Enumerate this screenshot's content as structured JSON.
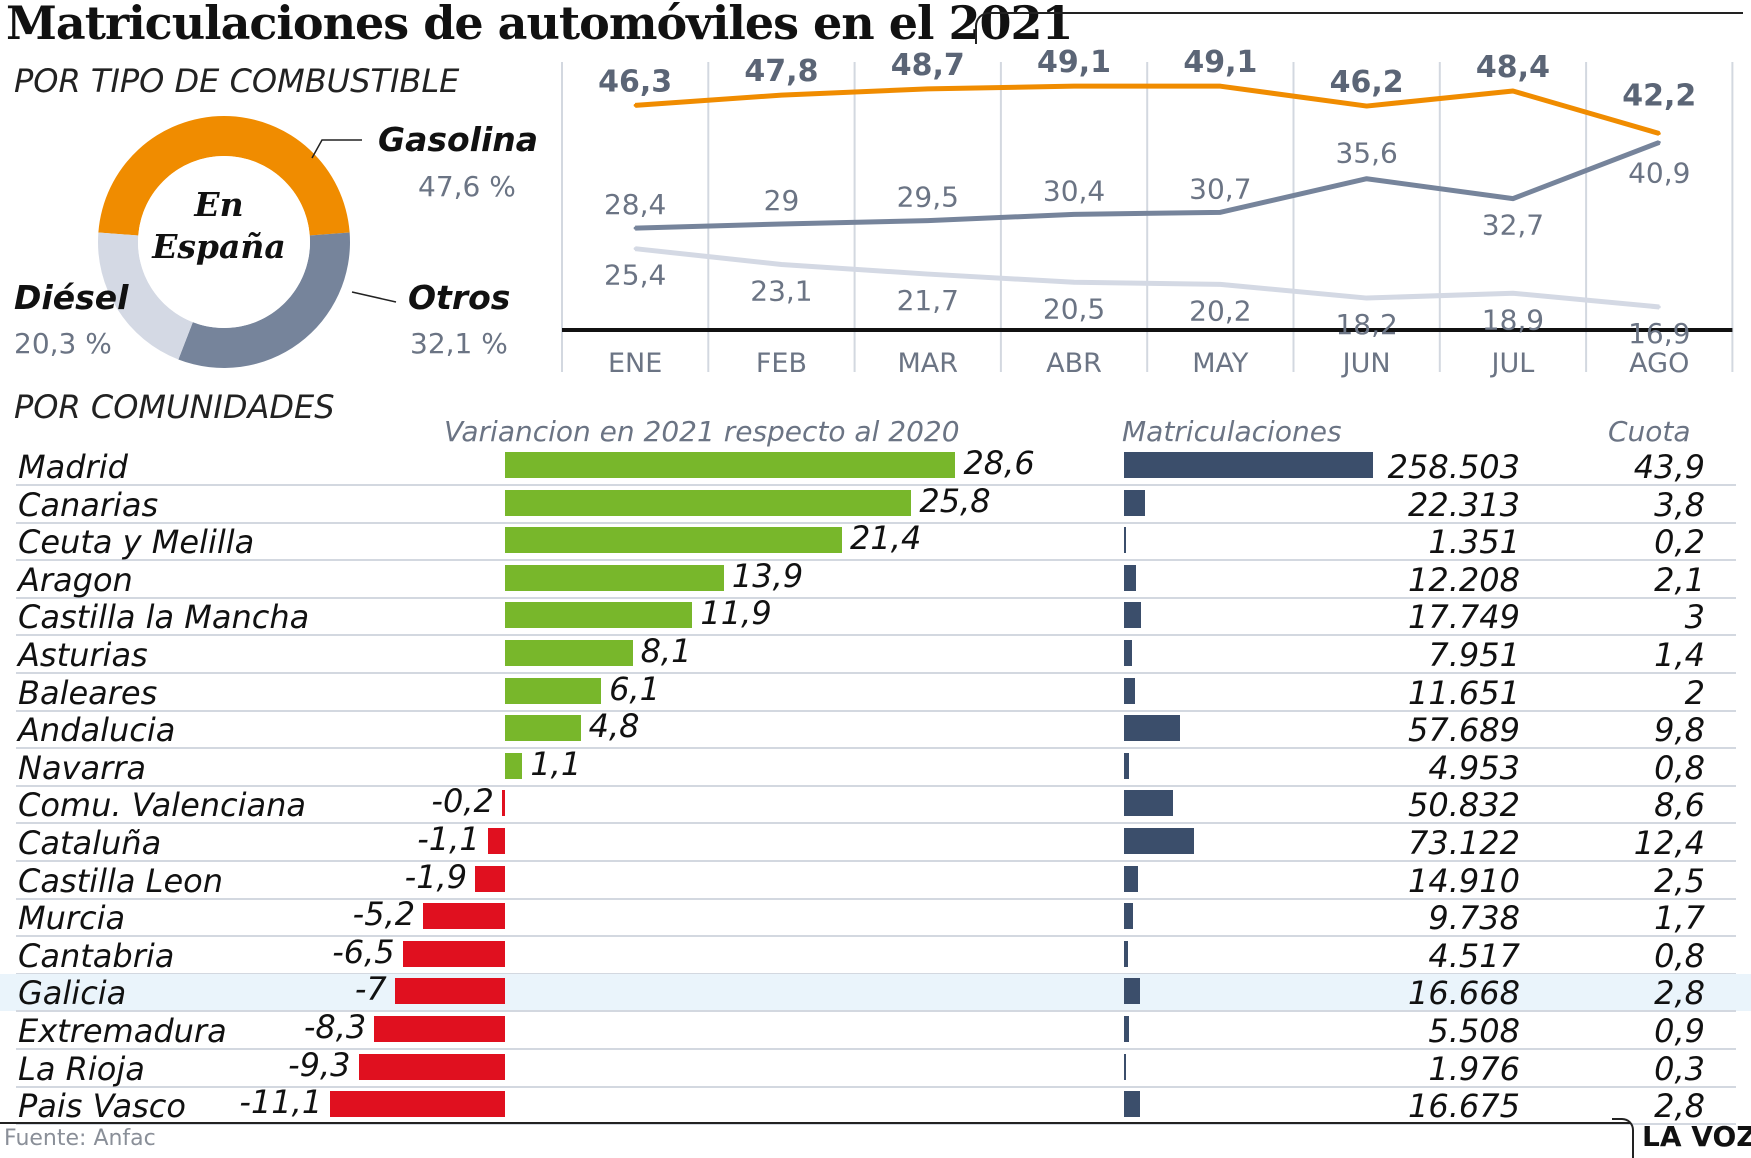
{
  "title": "Matriculaciones de automóviles en el 2021",
  "fuel_section": "POR TIPO DE COMBUSTIBLE",
  "region_section": "POR COMUNIDADES",
  "source": "Fuente: Anfac",
  "brand": "LA VOZ",
  "colors": {
    "gasolina": "#f08c00",
    "otros": "#76849b",
    "diesel": "#d4d9e4",
    "positive": "#78b72b",
    "negative": "#e0101f",
    "registrations": "#3b4e6b",
    "highlight": "#eaf4fb"
  },
  "chart_data": [
    {
      "type": "pie",
      "center_label_line1": "En",
      "center_label_line2": "España",
      "slices": [
        {
          "label": "Gasolina",
          "value": 47.6,
          "value_label": "47,6 %"
        },
        {
          "label": "Otros",
          "value": 32.1,
          "value_label": "32,1 %"
        },
        {
          "label": "Diésel",
          "value": 20.3,
          "value_label": "20,3 %"
        }
      ]
    },
    {
      "type": "line",
      "categories": [
        "ENE",
        "FEB",
        "MAR",
        "ABR",
        "MAY",
        "JUN",
        "JUL",
        "AGO"
      ],
      "ylim": [
        15,
        50
      ],
      "grid": true,
      "series": [
        {
          "key": "gasolina",
          "values": [
            46.3,
            47.8,
            48.7,
            49.1,
            49.1,
            46.2,
            48.4,
            42.2
          ],
          "labels": [
            "46,3",
            "47,8",
            "48,7",
            "49,1",
            "49,1",
            "46,2",
            "48,4",
            "42,2"
          ]
        },
        {
          "key": "otros",
          "values": [
            28.4,
            29,
            29.5,
            30.4,
            30.7,
            35.6,
            32.7,
            40.9
          ],
          "labels": [
            "28,4",
            "29",
            "29,5",
            "30,4",
            "30,7",
            "35,6",
            "32,7",
            "40,9"
          ]
        },
        {
          "key": "diesel",
          "values": [
            25.4,
            23.1,
            21.7,
            20.5,
            20.2,
            18.2,
            18.9,
            16.9
          ],
          "labels": [
            "25,4",
            "23,1",
            "21,7",
            "20,5",
            "20,2",
            "18,2",
            "18,9",
            "16,9"
          ]
        }
      ]
    },
    {
      "type": "table",
      "columns": [
        "Variancion en 2021 respecto al 2020",
        "Matriculaciones",
        "Cuota"
      ],
      "highlight_row": "Galicia",
      "rows": [
        {
          "name": "Madrid",
          "var": 28.6,
          "var_label": "28,6",
          "reg": 258503,
          "reg_label": "258.503",
          "share": "43,9"
        },
        {
          "name": "Canarias",
          "var": 25.8,
          "var_label": "25,8",
          "reg": 22313,
          "reg_label": "22.313",
          "share": "3,8"
        },
        {
          "name": "Ceuta y Melilla",
          "var": 21.4,
          "var_label": "21,4",
          "reg": 1351,
          "reg_label": "1.351",
          "share": "0,2"
        },
        {
          "name": "Aragon",
          "var": 13.9,
          "var_label": "13,9",
          "reg": 12208,
          "reg_label": "12.208",
          "share": "2,1"
        },
        {
          "name": "Castilla la Mancha",
          "var": 11.9,
          "var_label": "11,9",
          "reg": 17749,
          "reg_label": "17.749",
          "share": "3"
        },
        {
          "name": "Asturias",
          "var": 8.1,
          "var_label": "8,1",
          "reg": 7951,
          "reg_label": "7.951",
          "share": "1,4"
        },
        {
          "name": "Baleares",
          "var": 6.1,
          "var_label": "6,1",
          "reg": 11651,
          "reg_label": "11.651",
          "share": "2"
        },
        {
          "name": "Andalucia",
          "var": 4.8,
          "var_label": "4,8",
          "reg": 57689,
          "reg_label": "57.689",
          "share": "9,8"
        },
        {
          "name": "Navarra",
          "var": 1.1,
          "var_label": "1,1",
          "reg": 4953,
          "reg_label": "4.953",
          "share": "0,8"
        },
        {
          "name": "Comu. Valenciana",
          "var": -0.2,
          "var_label": "-0,2",
          "reg": 50832,
          "reg_label": "50.832",
          "share": "8,6"
        },
        {
          "name": "Cataluña",
          "var": -1.1,
          "var_label": "-1,1",
          "reg": 73122,
          "reg_label": "73.122",
          "share": "12,4"
        },
        {
          "name": "Castilla Leon",
          "var": -1.9,
          "var_label": "-1,9",
          "reg": 14910,
          "reg_label": "14.910",
          "share": "2,5"
        },
        {
          "name": "Murcia",
          "var": -5.2,
          "var_label": "-5,2",
          "reg": 9738,
          "reg_label": "9.738",
          "share": "1,7"
        },
        {
          "name": "Cantabria",
          "var": -6.5,
          "var_label": "-6,5",
          "reg": 4517,
          "reg_label": "4.517",
          "share": "0,8"
        },
        {
          "name": "Galicia",
          "var": -7,
          "var_label": "-7",
          "reg": 16668,
          "reg_label": "16.668",
          "share": "2,8"
        },
        {
          "name": "Extremadura",
          "var": -8.3,
          "var_label": "-8,3",
          "reg": 5508,
          "reg_label": "5.508",
          "share": "0,9"
        },
        {
          "name": "La Rioja",
          "var": -9.3,
          "var_label": "-9,3",
          "reg": 1976,
          "reg_label": "1.976",
          "share": "0,3"
        },
        {
          "name": "Pais Vasco",
          "var": -11.1,
          "var_label": "-11,1",
          "reg": 16675,
          "reg_label": "16.675",
          "share": "2,8"
        }
      ]
    }
  ]
}
